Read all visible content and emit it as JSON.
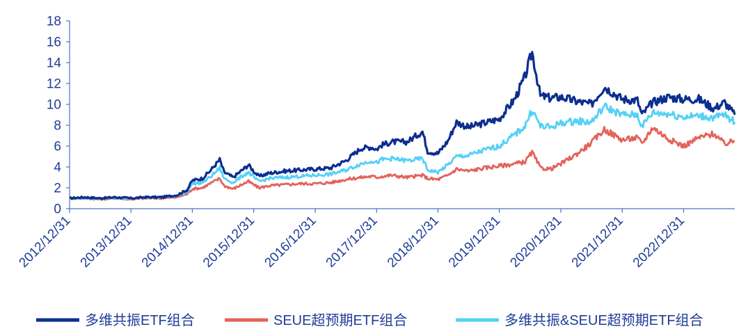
{
  "chart_data": {
    "type": "line",
    "title": "",
    "xlabel": "",
    "ylabel": "",
    "ylim": [
      0,
      18
    ],
    "yticks": [
      0,
      2,
      4,
      6,
      8,
      10,
      12,
      14,
      16,
      18
    ],
    "xlim": [
      "2012-12-31",
      "2023-10-31"
    ],
    "xticks": [
      "2012/12/31",
      "2013/12/31",
      "2014/12/31",
      "2015/12/31",
      "2016/12/31",
      "2017/12/31",
      "2018/12/31",
      "2019/12/31",
      "2020/12/31",
      "2021/12/31",
      "2022/12/31"
    ],
    "grid": false,
    "legend": "bottom",
    "x": [
      "2012-12-31",
      "2013-03-31",
      "2013-06-30",
      "2013-09-30",
      "2013-12-31",
      "2014-03-31",
      "2014-06-30",
      "2014-09-30",
      "2014-11-30",
      "2014-12-31",
      "2015-02-28",
      "2015-04-15",
      "2015-06-12",
      "2015-07-08",
      "2015-08-31",
      "2015-10-31",
      "2015-11-30",
      "2015-12-31",
      "2016-01-31",
      "2016-03-31",
      "2016-06-30",
      "2016-09-30",
      "2016-12-31",
      "2017-03-31",
      "2017-06-30",
      "2017-09-30",
      "2017-11-30",
      "2017-12-31",
      "2018-01-31",
      "2018-03-31",
      "2018-06-30",
      "2018-09-30",
      "2018-10-31",
      "2018-12-31",
      "2019-02-28",
      "2019-04-20",
      "2019-06-30",
      "2019-09-30",
      "2019-12-31",
      "2020-03-31",
      "2020-05-31",
      "2020-07-13",
      "2020-08-31",
      "2020-10-31",
      "2020-12-31",
      "2021-03-31",
      "2021-06-30",
      "2021-09-15",
      "2021-12-31",
      "2022-03-31",
      "2022-04-27",
      "2022-06-30",
      "2022-09-30",
      "2022-12-31",
      "2023-03-31",
      "2023-06-30",
      "2023-08-31",
      "2023-10-31"
    ],
    "series": [
      {
        "name": "多维共振ETF组合",
        "color": "#0b2e8f",
        "values": [
          1.0,
          1.1,
          1.0,
          1.1,
          1.0,
          1.1,
          1.1,
          1.3,
          1.8,
          2.7,
          2.9,
          3.6,
          4.7,
          3.5,
          3.0,
          3.8,
          4.2,
          3.6,
          3.1,
          3.4,
          3.6,
          3.7,
          3.8,
          3.9,
          4.6,
          5.8,
          5.9,
          5.7,
          6.1,
          6.4,
          6.4,
          7.4,
          5.5,
          5.3,
          6.5,
          8.3,
          7.8,
          8.2,
          8.6,
          10.5,
          12.6,
          15.0,
          10.8,
          10.6,
          10.7,
          10.3,
          10.0,
          11.7,
          10.5,
          10.4,
          9.0,
          10.2,
          10.7,
          10.5,
          10.5,
          9.6,
          10.2,
          9.0
        ]
      },
      {
        "name": "SEUE超预期ETF组合",
        "color": "#e3625a",
        "values": [
          1.0,
          1.0,
          0.9,
          1.0,
          0.9,
          1.0,
          1.0,
          1.1,
          1.4,
          1.9,
          2.0,
          2.4,
          2.9,
          2.2,
          1.9,
          2.4,
          2.6,
          2.3,
          2.0,
          2.2,
          2.3,
          2.4,
          2.4,
          2.5,
          2.8,
          3.0,
          3.1,
          3.0,
          3.1,
          3.2,
          3.0,
          3.2,
          2.9,
          2.8,
          3.2,
          3.8,
          3.6,
          3.9,
          4.1,
          4.3,
          4.5,
          5.4,
          3.9,
          3.8,
          4.3,
          5.2,
          6.3,
          7.6,
          6.6,
          6.8,
          6.2,
          7.8,
          6.7,
          6.0,
          6.8,
          7.2,
          6.2,
          6.5
        ]
      },
      {
        "name": "多维共振&SEUE超预期ETF组合",
        "color": "#55d0f7",
        "values": [
          1.0,
          1.0,
          1.0,
          1.0,
          1.0,
          1.1,
          1.1,
          1.2,
          1.6,
          2.4,
          2.5,
          3.0,
          3.9,
          2.9,
          2.5,
          3.2,
          3.5,
          3.0,
          2.6,
          2.9,
          3.0,
          3.1,
          3.2,
          3.3,
          3.7,
          4.3,
          4.6,
          4.4,
          4.7,
          4.8,
          4.6,
          4.8,
          3.7,
          3.5,
          4.2,
          5.0,
          5.1,
          5.6,
          6.0,
          7.1,
          7.9,
          9.5,
          7.9,
          7.8,
          8.2,
          8.4,
          8.3,
          9.8,
          9.0,
          9.0,
          7.9,
          9.2,
          9.1,
          8.8,
          8.9,
          8.7,
          9.0,
          8.3
        ]
      }
    ]
  }
}
